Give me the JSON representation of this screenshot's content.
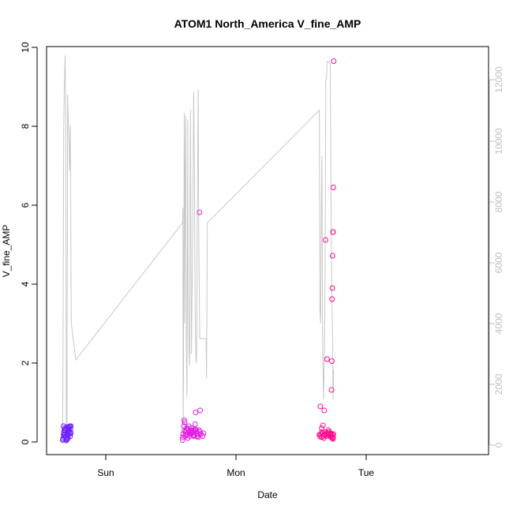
{
  "chart_data": {
    "type": "scatter",
    "title": "ATOM1 North_America V_fine_AMP",
    "xlabel": "Date",
    "ylabel": "V_fine_AMP",
    "x_ticks": [
      "Sun",
      "Mon",
      "Tue"
    ],
    "ylim": [
      0,
      10
    ],
    "y_ticks": [
      "0",
      "2",
      "4",
      "6",
      "8",
      "10"
    ],
    "y2lim": [
      0,
      13000
    ],
    "y2_ticks": [
      "0",
      "2000",
      "4000",
      "6000",
      "8000",
      "10000",
      "12000"
    ],
    "colors": {
      "line": "#c8c8c8",
      "purple": "#7020ff",
      "magenta": "#e020e0",
      "pink": "#ff1090",
      "frame": "#000000"
    },
    "series": [
      {
        "type": "line",
        "axis": "right",
        "color": "#c8c8c8",
        "x": [
          -0.33,
          -0.323,
          -0.318,
          -0.312,
          -0.307,
          -0.303,
          -0.298,
          -0.293,
          -0.287,
          -0.282,
          -0.278,
          -0.272,
          -0.265,
          -0.23,
          0.59,
          0.592,
          0.594,
          0.597,
          0.6,
          0.603,
          0.606,
          0.61,
          0.614,
          0.617,
          0.62,
          0.623,
          0.627,
          0.63,
          0.633,
          0.637,
          0.64,
          0.644,
          0.648,
          0.651,
          0.655,
          0.658,
          0.662,
          0.666,
          0.669,
          0.675,
          0.68,
          0.686,
          0.69,
          0.694,
          0.698,
          0.702,
          0.706,
          0.71,
          0.714,
          0.718,
          0.722,
          0.76,
          0.765,
          0.77,
          0.774,
          0.78,
          1.64,
          1.645,
          1.65,
          1.655,
          1.66,
          1.666,
          1.672,
          1.68,
          1.685,
          1.69,
          1.695,
          1.7,
          1.705,
          1.712,
          1.718,
          1.724,
          1.73,
          1.736,
          1.742,
          1.746,
          1.75
        ],
        "y": [
          500,
          10300,
          11800,
          12800,
          11000,
          300,
          500,
          11500,
          10600,
          10000,
          9000,
          10500,
          4000,
          2800,
          7300,
          7800,
          500,
          2500,
          7000,
          10900,
          4000,
          9000,
          10800,
          6500,
          2500,
          1600,
          6000,
          10700,
          5000,
          4000,
          3000,
          2600,
          8500,
          11000,
          5500,
          3000,
          4500,
          6000,
          7500,
          11600,
          9500,
          5000,
          3300,
          2700,
          3000,
          7000,
          9500,
          11700,
          7000,
          5000,
          3500,
          3500,
          3500,
          3500,
          2200,
          7300,
          11000,
          4400,
          4000,
          7700,
          9500,
          3000,
          1500,
          3300,
          6000,
          12000,
          12000,
          12600,
          12600,
          12600,
          12600,
          12500,
          8000,
          5000,
          3500,
          1500,
          2500
        ]
      },
      {
        "type": "points",
        "axis": "left",
        "color": "#7020ff",
        "x": [
          -0.33,
          -0.327,
          -0.324,
          -0.321,
          -0.318,
          -0.315,
          -0.312,
          -0.309,
          -0.306,
          -0.303,
          -0.3,
          -0.297,
          -0.294,
          -0.291,
          -0.288,
          -0.285,
          -0.282,
          -0.279,
          -0.276,
          -0.273,
          -0.27,
          -0.267,
          -0.325,
          -0.316,
          -0.305,
          -0.296,
          -0.287,
          -0.278,
          -0.269,
          -0.322,
          -0.31,
          -0.298,
          -0.284,
          -0.274
        ],
        "y": [
          0.05,
          0.08,
          0.18,
          0.25,
          0.3,
          0.35,
          0.2,
          0.28,
          0.12,
          0.04,
          0.32,
          0.22,
          0.38,
          0.1,
          0.3,
          0.36,
          0.28,
          0.22,
          0.4,
          0.32,
          0.24,
          0.4,
          0.4,
          0.18,
          0.35,
          0.08,
          0.18,
          0.38,
          0.22,
          0.12,
          0.28,
          0.06,
          0.32,
          0.14
        ]
      },
      {
        "type": "points",
        "axis": "left",
        "color": "#e020e0",
        "x": [
          0.59,
          0.594,
          0.598,
          0.602,
          0.606,
          0.61,
          0.614,
          0.618,
          0.622,
          0.626,
          0.63,
          0.634,
          0.638,
          0.642,
          0.646,
          0.65,
          0.654,
          0.658,
          0.662,
          0.666,
          0.67,
          0.674,
          0.678,
          0.682,
          0.686,
          0.69,
          0.694,
          0.7,
          0.705,
          0.71,
          0.715,
          0.72,
          0.725,
          0.73,
          0.745,
          0.75,
          0.592,
          0.604,
          0.616,
          0.628,
          0.64,
          0.652,
          0.664,
          0.676,
          0.688,
          0.7,
          0.712,
          0.724
        ],
        "y": [
          0.05,
          0.2,
          0.4,
          0.55,
          0.5,
          0.15,
          0.25,
          0.3,
          0.35,
          0.2,
          0.1,
          0.3,
          0.4,
          0.25,
          0.15,
          0.3,
          0.2,
          0.35,
          0.22,
          0.25,
          0.3,
          0.18,
          0.15,
          0.28,
          0.45,
          0.75,
          0.3,
          0.2,
          0.15,
          0.12,
          0.3,
          5.82,
          0.8,
          0.2,
          0.15,
          0.22,
          0.12,
          0.28,
          0.18,
          0.33,
          0.25,
          0.21,
          0.27,
          0.16,
          0.32,
          0.24,
          0.2,
          0.26
        ]
      },
      {
        "type": "points",
        "axis": "left",
        "color": "#ff1090",
        "x": [
          1.64,
          1.645,
          1.65,
          1.655,
          1.66,
          1.665,
          1.67,
          1.675,
          1.68,
          1.685,
          1.69,
          1.695,
          1.7,
          1.705,
          1.71,
          1.715,
          1.72,
          1.725,
          1.73,
          1.735,
          1.74,
          1.745,
          1.75,
          1.748,
          1.746,
          1.744,
          1.742,
          1.74,
          1.738,
          1.736,
          1.734,
          1.746,
          1.742,
          1.74,
          1.748,
          1.648,
          1.658,
          1.668,
          1.678,
          1.688,
          1.698,
          1.708,
          1.718,
          1.728
        ],
        "y": [
          0.18,
          0.15,
          0.2,
          0.12,
          0.25,
          0.22,
          0.15,
          0.1,
          0.2,
          0.18,
          0.25,
          0.15,
          0.22,
          0.2,
          0.3,
          0.25,
          0.15,
          0.2,
          0.12,
          0.15,
          0.1,
          0.08,
          9.65,
          6.45,
          5.32,
          5.32,
          4.72,
          3.9,
          3.62,
          2.05,
          1.32,
          0.12,
          0.18,
          0.1,
          0.2,
          0.9,
          0.35,
          0.42,
          0.8,
          5.12,
          2.1,
          0.25,
          0.18,
          0.22
        ]
      }
    ]
  }
}
